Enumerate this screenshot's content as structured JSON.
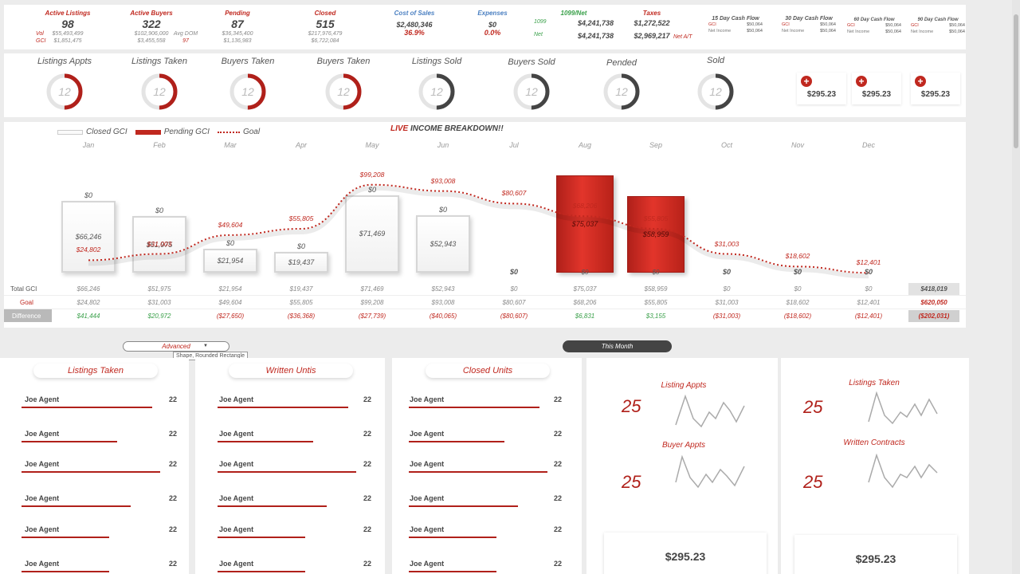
{
  "kpis": [
    {
      "label": "Active Listings",
      "value": "98",
      "sub_left": [
        "Vol",
        "GCI"
      ],
      "sub_values": [
        "$55,493,499",
        "$1,851,475"
      ]
    },
    {
      "label": "Active Buyers",
      "value": "322",
      "sub_values": [
        "$102,906,000",
        "$3,455,558"
      ],
      "extra_label": "Avg DOM",
      "extra_value": "97"
    },
    {
      "label": "Pending",
      "value": "87",
      "sub_values": [
        "$36,345,400",
        "$1,136,983"
      ]
    },
    {
      "label": "Closed",
      "value": "515",
      "sub_values": [
        "$217,976,479",
        "$6,722,084"
      ]
    },
    {
      "label": "Cost of Sales",
      "value": "$2,480,346",
      "pct": "36.9%"
    },
    {
      "label": "Expenses",
      "value": "$0",
      "pct": "0.0%"
    },
    {
      "label": "1099/Net",
      "row_labels": [
        "1099",
        "Net"
      ],
      "values": [
        "$4,241,738",
        "$4,241,738"
      ]
    },
    {
      "label": "Taxes",
      "values": [
        "$1,272,522",
        "$2,969,217"
      ],
      "tail": "Net A/T"
    }
  ],
  "cash_flow": [
    {
      "title": "15 Day Cash Flow",
      "gci_label": "GCI",
      "gci": "$50,064",
      "ni_label": "Net Income",
      "ni": "$50,064"
    },
    {
      "title": "30 Day Cash Flow",
      "gci_label": "GCI",
      "gci": "$50,064",
      "ni_label": "Net Income",
      "ni": "$50,064"
    },
    {
      "title": "60 Day Cash Flow",
      "gci_label": "GCI",
      "gci": "$50,064",
      "ni_label": "Net Income",
      "ni": "$50,064"
    },
    {
      "title": "90 Day Cash Flow",
      "gci_label": "GCI",
      "gci": "$50,064",
      "ni_label": "Net Income",
      "ni": "$50,064"
    }
  ],
  "rings": [
    {
      "title": "Listings Appts",
      "value": "12",
      "progress": 0.5,
      "color": "#b0201a"
    },
    {
      "title": "Listings Taken",
      "value": "12",
      "progress": 0.5,
      "color": "#b0201a"
    },
    {
      "title": "Buyers  Taken",
      "value": "12",
      "progress": 0.5,
      "color": "#b0201a"
    },
    {
      "title": "Buyers  Taken",
      "value": "12",
      "progress": 0.5,
      "color": "#b0201a"
    },
    {
      "title": "Listings Sold",
      "value": "12",
      "progress": 0.5,
      "color": "#444444"
    },
    {
      "title": "Buyers Sold",
      "value": "12",
      "progress": 0.5,
      "color": "#444444"
    },
    {
      "title": "Pended",
      "value": "12",
      "progress": 0.5,
      "color": "#444444"
    },
    {
      "title": "Sold",
      "value": "12",
      "progress": 0.5,
      "color": "#444444"
    }
  ],
  "mini_cards": [
    {
      "plus": "+",
      "amount": "$295.23"
    },
    {
      "plus": "+",
      "amount": "$295.23"
    },
    {
      "plus": "+",
      "amount": "$295.23"
    }
  ],
  "chart_data": {
    "type": "bar",
    "title_live": "LIVE",
    "title_rest": " INCOME BREAKDOWN!!",
    "legend": [
      "Closed GCI",
      "Pending GCI",
      "Goal"
    ],
    "categories": [
      "Jan",
      "Feb",
      "Mar",
      "Apr",
      "May",
      "Jun",
      "Jul",
      "Aug",
      "Sep",
      "Oct",
      "Nov",
      "Dec"
    ],
    "series": [
      {
        "name": "Closed GCI",
        "values": [
          66246,
          51975,
          21954,
          19437,
          71469,
          52943,
          0,
          0,
          0,
          0,
          0,
          0
        ]
      },
      {
        "name": "Pending GCI",
        "values": [
          0,
          0,
          0,
          0,
          0,
          0,
          0,
          75037,
          58959,
          0,
          0,
          0
        ]
      },
      {
        "name": "Goal",
        "values": [
          24802,
          31003,
          49604,
          55805,
          99208,
          93008,
          80607,
          68206,
          55805,
          31003,
          18602,
          12401
        ]
      }
    ],
    "bar_labels": [
      "$0",
      "$0",
      "$0",
      "$0",
      "$0",
      "$0",
      "$0",
      "$0",
      "$0",
      "$0",
      "$0",
      "$0"
    ],
    "closed_labels": [
      "$66,246",
      "$51,975",
      "$21,954",
      "$19,437",
      "$71,469",
      "$52,943",
      "",
      "",
      "",
      "",
      "",
      ""
    ],
    "pending_labels": [
      "",
      "",
      "",
      "",
      "",
      "",
      "",
      "$75,037",
      "$58,959",
      "",
      "",
      ""
    ],
    "goal_labels": [
      "$24,802",
      "$31,003",
      "$49,604",
      "$55,805",
      "$99,208",
      "$93,008",
      "$80,607",
      "$68,206",
      "$55,805",
      "$31,003",
      "$18,602",
      "$12,401"
    ],
    "ylim": [
      0,
      110000
    ]
  },
  "table": {
    "row_labels": [
      "Total GCI",
      "Goal",
      "Difference"
    ],
    "total_gci": [
      "$66,246",
      "$51,975",
      "$21,954",
      "$19,437",
      "$71,469",
      "$52,943",
      "$0",
      "$75,037",
      "$58,959",
      "$0",
      "$0",
      "$0"
    ],
    "goal": [
      "$24,802",
      "$31,003",
      "$49,604",
      "$55,805",
      "$99,208",
      "$93,008",
      "$80,607",
      "$68,206",
      "$55,805",
      "$31,003",
      "$18,602",
      "$12,401"
    ],
    "difference": [
      "$41,444",
      "$20,972",
      "($27,650)",
      "($36,368)",
      "($27,739)",
      "($40,065)",
      "($80,607)",
      "$6,831",
      "$3,155",
      "($31,003)",
      "($18,602)",
      "($12,401)"
    ],
    "totals": [
      "$418,019",
      "$620,050",
      "($202,031)"
    ]
  },
  "controls": {
    "advanced": "Advanced",
    "tooltip": "Shape, Rounded Rectangle",
    "this_month": "This Month"
  },
  "leaderboards": [
    {
      "title": "Listings Taken",
      "rows": [
        {
          "name": "Joe Agent",
          "count": "22",
          "fill": 0.85
        },
        {
          "name": "Joe Agent",
          "count": "22",
          "fill": 0.62
        },
        {
          "name": "Joe Agent",
          "count": "22",
          "fill": 0.9
        },
        {
          "name": "Joe Agent",
          "count": "22",
          "fill": 0.71
        },
        {
          "name": "Joe Agent",
          "count": "22",
          "fill": 0.57
        },
        {
          "name": "Joe Agent",
          "count": "22",
          "fill": 0.57
        }
      ]
    },
    {
      "title": "Written Untis",
      "rows": [
        {
          "name": "Joe Agent",
          "count": "22",
          "fill": 0.85
        },
        {
          "name": "Joe Agent",
          "count": "22",
          "fill": 0.62
        },
        {
          "name": "Joe Agent",
          "count": "22",
          "fill": 0.9
        },
        {
          "name": "Joe Agent",
          "count": "22",
          "fill": 0.71
        },
        {
          "name": "Joe Agent",
          "count": "22",
          "fill": 0.57
        },
        {
          "name": "Joe Agent",
          "count": "22",
          "fill": 0.57
        }
      ]
    },
    {
      "title": "Closed Units",
      "rows": [
        {
          "name": "Joe Agent",
          "count": "22",
          "fill": 0.85
        },
        {
          "name": "Joe Agent",
          "count": "22",
          "fill": 0.62
        },
        {
          "name": "Joe Agent",
          "count": "22",
          "fill": 0.9
        },
        {
          "name": "Joe Agent",
          "count": "22",
          "fill": 0.71
        },
        {
          "name": "Joe Agent",
          "count": "22",
          "fill": 0.57
        },
        {
          "name": "Joe Agent",
          "count": "22",
          "fill": 0.57
        }
      ]
    }
  ],
  "spark_cards": [
    {
      "items": [
        {
          "title": "Listing Appts",
          "value": "25"
        },
        {
          "title": "Buyer Appts",
          "value": "25"
        }
      ],
      "amount": "$295.23"
    },
    {
      "items": [
        {
          "title": "Listings Taken",
          "value": "25"
        },
        {
          "title": "Written Contracts",
          "value": "25"
        }
      ],
      "amount": "$295.23"
    }
  ]
}
